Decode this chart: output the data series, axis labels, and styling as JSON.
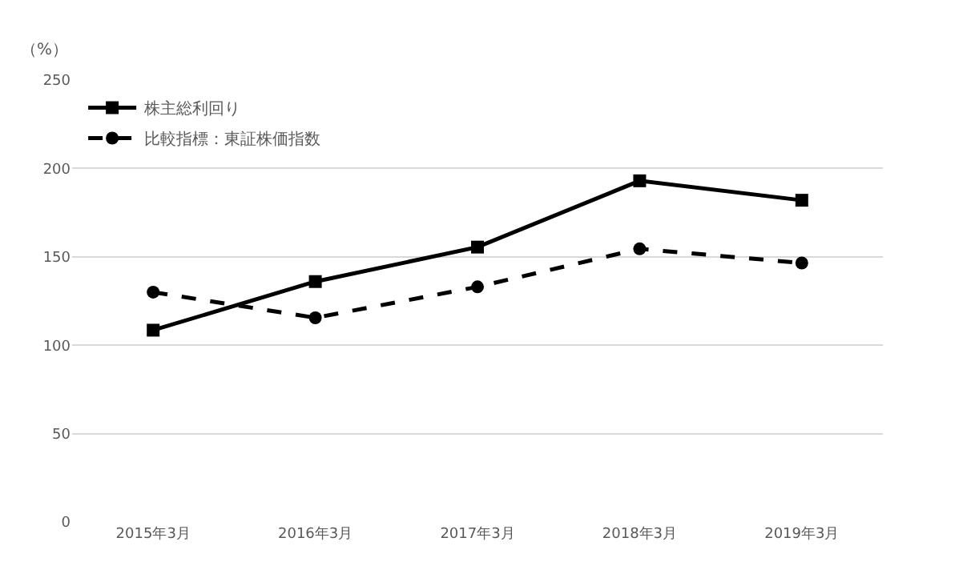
{
  "chart_data": {
    "type": "line",
    "ylabel": "（%）",
    "categories": [
      "2015年3月",
      "2016年3月",
      "2017年3月",
      "2018年3月",
      "2019年3月"
    ],
    "series": [
      {
        "name": "株主総利回り",
        "color": "#000000",
        "values": [
          108.5,
          136,
          155.5,
          193,
          182
        ],
        "marker": "square",
        "line_style": "solid"
      },
      {
        "name": "比較指標：東証株価指数",
        "color": "#000000",
        "values": [
          130,
          115.5,
          133,
          154.5,
          146.5
        ],
        "marker": "circle",
        "line_style": "dashed"
      }
    ],
    "ylim": [
      0,
      250
    ],
    "yticks": [
      0,
      50,
      100,
      150,
      200,
      250
    ],
    "grid": "y",
    "legend": "top left"
  }
}
